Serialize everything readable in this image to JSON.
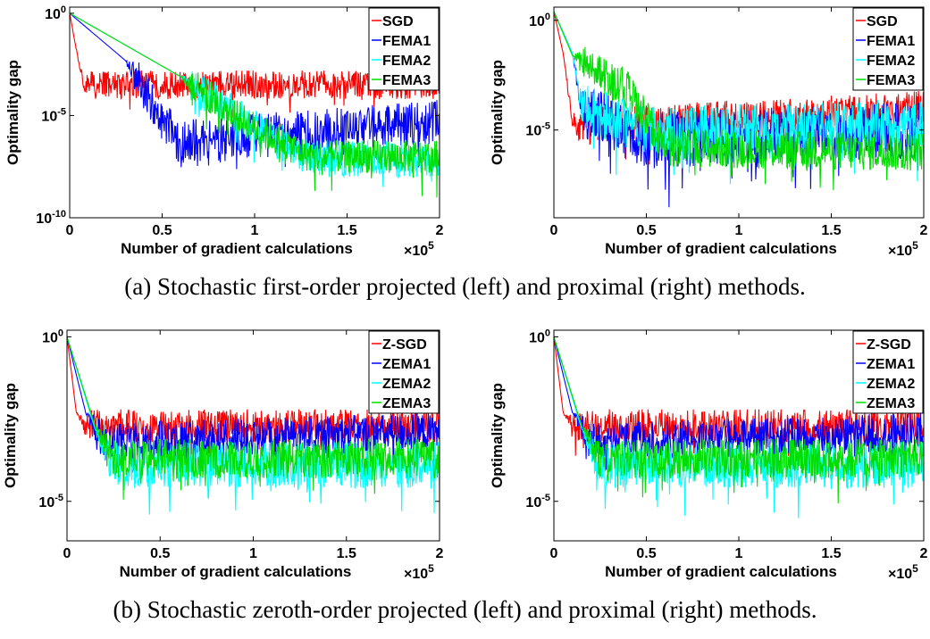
{
  "captions": {
    "a": "(a) Stochastic first-order projected (left) and proximal (right) methods.",
    "b": "(b) Stochastic zeroth-order projected (left) and proximal (right) methods."
  },
  "chart_data": [
    {
      "type": "line",
      "xlabel": "Number of gradient calculations",
      "x_multiplier": "×10^5",
      "ylabel": "Optimality gap",
      "xlim": [
        0,
        2
      ],
      "ylim_log10": [
        -10,
        0.3
      ],
      "y_scale": "log",
      "xticks": [
        0,
        0.5,
        1,
        1.5,
        2
      ],
      "xtick_labels": [
        "0",
        "0.5",
        "1",
        "1.5",
        "2"
      ],
      "yticks_log10": [
        0,
        -5,
        -10
      ],
      "ytick_labels": [
        "10^0",
        "10^-5",
        "10^-10"
      ],
      "legend": "top-right",
      "series": [
        {
          "name": "SGD",
          "color": "#ff0000",
          "x": [
            0,
            0.03,
            0.07,
            0.1,
            0.2,
            2
          ],
          "log10_y": [
            0,
            -1.5,
            -3.3,
            -3.5,
            -3.5,
            -3.5
          ],
          "noise": 0.7
        },
        {
          "name": "FEMA1",
          "color": "#0000ff",
          "x": [
            0,
            0.3,
            0.5,
            0.6,
            2
          ],
          "log10_y": [
            0,
            -2.3,
            -5.2,
            -6.3,
            -5.3
          ],
          "noise": 1.1
        },
        {
          "name": "FEMA2",
          "color": "#00ffff",
          "x": [
            0,
            0.6,
            1.0,
            1.3,
            2
          ],
          "log10_y": [
            0,
            -3.1,
            -5.6,
            -7.1,
            -7.1
          ],
          "noise": 0.9
        },
        {
          "name": "FEMA3",
          "color": "#00dd00",
          "x": [
            0,
            0.6,
            1.0,
            1.3,
            2
          ],
          "log10_y": [
            0,
            -3.1,
            -5.6,
            -7.0,
            -7.0
          ],
          "noise": 0.8
        }
      ]
    },
    {
      "type": "line",
      "xlabel": "Number of gradient calculations",
      "x_multiplier": "×10^5",
      "ylabel": "Optimality gap",
      "xlim": [
        0,
        2
      ],
      "ylim_log10": [
        -9,
        0.6
      ],
      "y_scale": "log",
      "xticks": [
        0,
        0.5,
        1,
        1.5,
        2
      ],
      "xtick_labels": [
        "0",
        "0.5",
        "1",
        "1.5",
        "2"
      ],
      "yticks_log10": [
        0,
        -5
      ],
      "ytick_labels": [
        "10^0",
        "10^-5"
      ],
      "legend": "top-right",
      "series": [
        {
          "name": "SGD",
          "color": "#ff0000",
          "x": [
            0,
            0.05,
            0.1,
            0.15,
            2
          ],
          "log10_y": [
            0.4,
            -1.5,
            -4.5,
            -4.8,
            -4.0
          ],
          "noise": 0.8
        },
        {
          "name": "FEMA1",
          "color": "#0000ff",
          "x": [
            0,
            0.1,
            0.15,
            0.5,
            2
          ],
          "log10_y": [
            0.4,
            -1.5,
            -4.0,
            -5.5,
            -5.0
          ],
          "noise": 1.3
        },
        {
          "name": "FEMA2",
          "color": "#00ffff",
          "x": [
            0,
            0.1,
            0.15,
            0.5,
            2
          ],
          "log10_y": [
            0.4,
            -1.5,
            -4.0,
            -5.0,
            -4.7
          ],
          "noise": 1.1
        },
        {
          "name": "FEMA3",
          "color": "#00dd00",
          "x": [
            0,
            0.1,
            0.4,
            0.6,
            2
          ],
          "log10_y": [
            0.4,
            -1.6,
            -3.2,
            -5.8,
            -6.0
          ],
          "noise": 0.9
        }
      ]
    },
    {
      "type": "line",
      "xlabel": "Number of gradient calculations",
      "x_multiplier": "×10^5",
      "ylabel": "Optimality gap",
      "xlim": [
        0,
        2
      ],
      "ylim_log10": [
        -6.2,
        0.2
      ],
      "y_scale": "log",
      "xticks": [
        0,
        0.5,
        1,
        1.5,
        2
      ],
      "xtick_labels": [
        "0",
        "0.5",
        "1",
        "1.5",
        "2"
      ],
      "yticks_log10": [
        0,
        -5
      ],
      "ytick_labels": [
        "10^0",
        "10^-5"
      ],
      "legend": "top-right",
      "series": [
        {
          "name": "Z-SGD",
          "color": "#ff0000",
          "x": [
            0,
            0.05,
            0.1,
            2
          ],
          "log10_y": [
            0,
            -2.3,
            -2.7,
            -2.7
          ],
          "noise": 0.5
        },
        {
          "name": "ZEMA1",
          "color": "#0000ff",
          "x": [
            0,
            0.1,
            0.2,
            2
          ],
          "log10_y": [
            0,
            -2.3,
            -3.2,
            -2.9
          ],
          "noise": 0.6
        },
        {
          "name": "ZEMA2",
          "color": "#00ffff",
          "x": [
            0,
            0.15,
            0.25,
            2
          ],
          "log10_y": [
            0,
            -2.8,
            -3.9,
            -3.9
          ],
          "noise": 0.7
        },
        {
          "name": "ZEMA3",
          "color": "#00dd00",
          "x": [
            0,
            0.15,
            0.25,
            2
          ],
          "log10_y": [
            0,
            -2.7,
            -3.7,
            -3.7
          ],
          "noise": 0.6
        }
      ]
    },
    {
      "type": "line",
      "xlabel": "Number of gradient calculations",
      "x_multiplier": "×10^5",
      "ylabel": "Optimality gap",
      "xlim": [
        0,
        2
      ],
      "ylim_log10": [
        -6.2,
        0.2
      ],
      "y_scale": "log",
      "xticks": [
        0,
        0.5,
        1,
        1.5,
        2
      ],
      "xtick_labels": [
        "0",
        "0.5",
        "1",
        "1.5",
        "2"
      ],
      "yticks_log10": [
        0,
        -5
      ],
      "ytick_labels": [
        "10^0",
        "10^-5"
      ],
      "legend": "top-right",
      "series": [
        {
          "name": "Z-SGD",
          "color": "#ff0000",
          "x": [
            0,
            0.05,
            0.1,
            2
          ],
          "log10_y": [
            0,
            -2.3,
            -2.7,
            -2.7
          ],
          "noise": 0.5
        },
        {
          "name": "ZEMA1",
          "color": "#0000ff",
          "x": [
            0,
            0.1,
            0.2,
            2
          ],
          "log10_y": [
            0,
            -2.3,
            -3.2,
            -2.9
          ],
          "noise": 0.6
        },
        {
          "name": "ZEMA2",
          "color": "#00ffff",
          "x": [
            0,
            0.15,
            0.25,
            2
          ],
          "log10_y": [
            0,
            -2.8,
            -3.9,
            -3.9
          ],
          "noise": 0.7
        },
        {
          "name": "ZEMA3",
          "color": "#00dd00",
          "x": [
            0,
            0.15,
            0.25,
            2
          ],
          "log10_y": [
            0,
            -2.7,
            -3.7,
            -3.7
          ],
          "noise": 0.6
        }
      ]
    }
  ]
}
